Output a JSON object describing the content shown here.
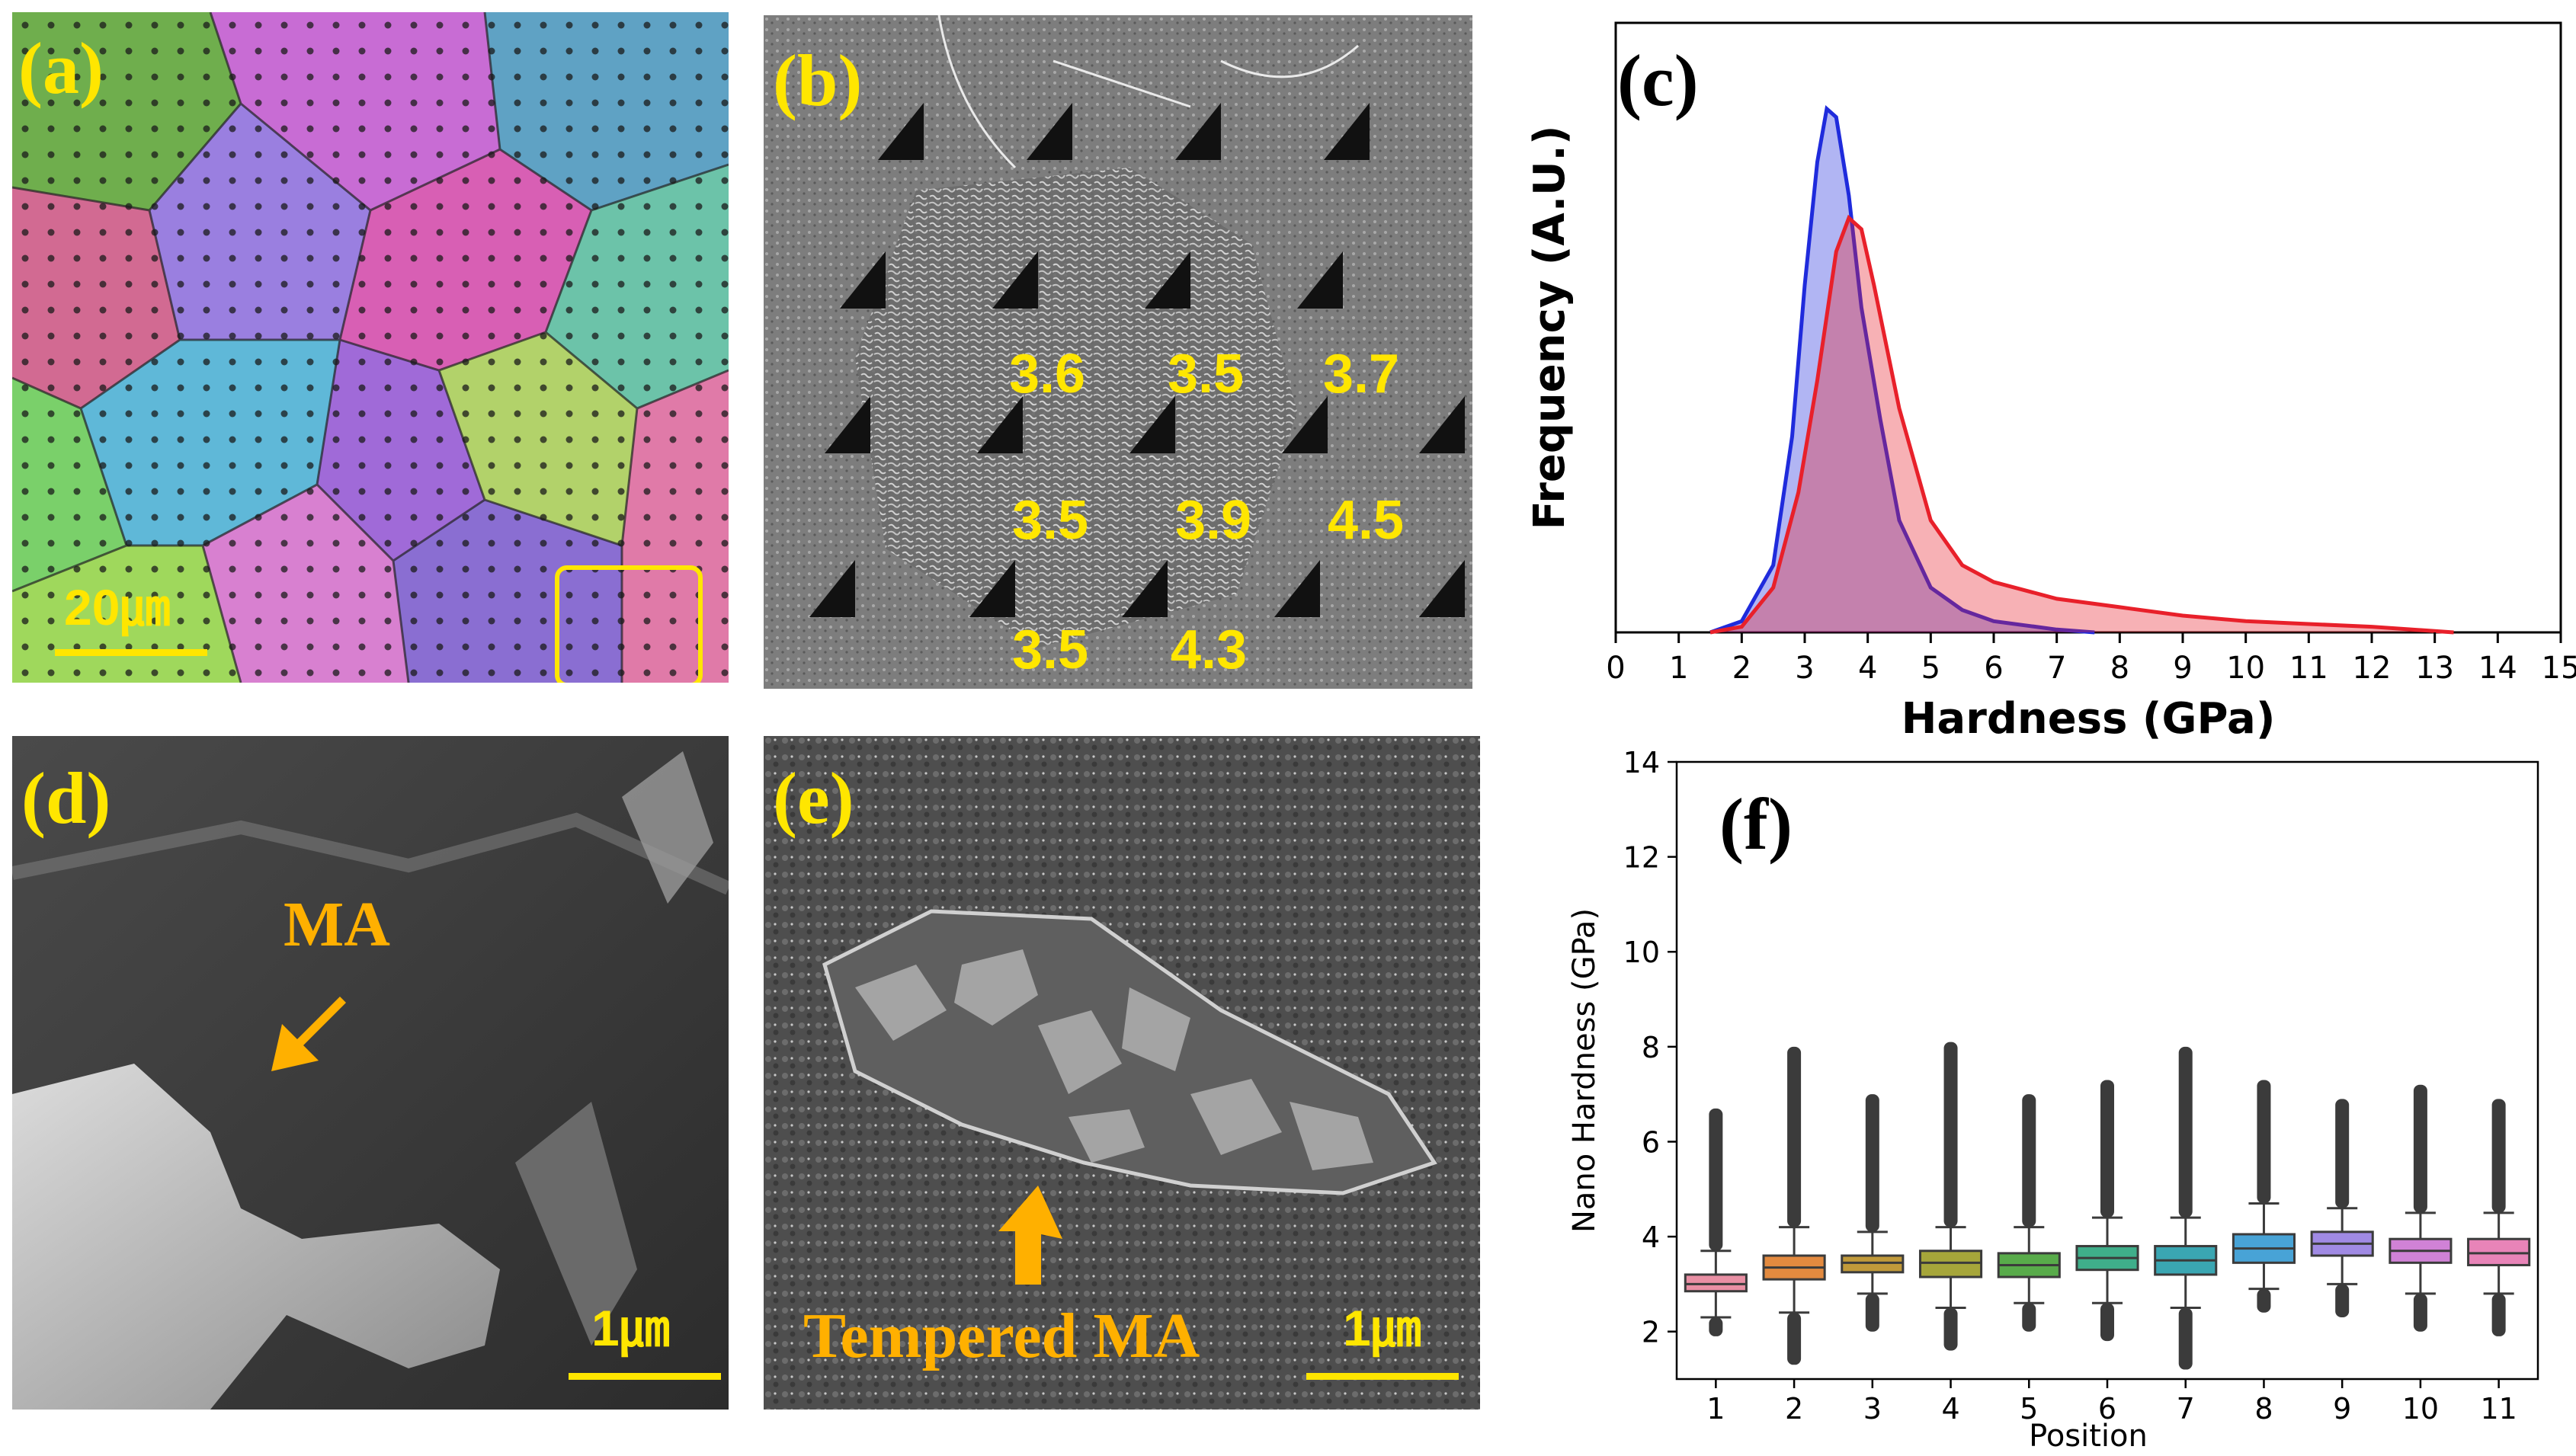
{
  "panel_a": {
    "label": "(a)",
    "scale_bar": "20㎛"
  },
  "panel_b": {
    "label": "(b)",
    "hardness_values": [
      "3.6",
      "3.5",
      "3.7",
      "3.5",
      "3.9",
      "4.5",
      "3.5",
      "4.3"
    ]
  },
  "panel_c": {
    "label": "(c)"
  },
  "panel_d": {
    "label": "(d)",
    "annotation": "MA",
    "scale_bar": "1㎛"
  },
  "panel_e": {
    "label": "(e)",
    "annotation": "Tempered MA",
    "scale_bar": "1㎛"
  },
  "panel_f": {
    "label": "(f)"
  },
  "colors": {
    "label_yellow": "#ffe600",
    "arrow_orange": "#ffb000",
    "blue_curve": "#1f2bdc",
    "red_curve": "#e8202a"
  },
  "chart_data": [
    {
      "type": "area",
      "xlabel": "Hardness (GPa)",
      "ylabel": "Frequency (A.U.)",
      "xlim": [
        0,
        15
      ],
      "xticks": [
        "0",
        "1",
        "2",
        "3",
        "4",
        "5",
        "6",
        "7",
        "8",
        "9",
        "10",
        "11",
        "12",
        "13",
        "14",
        "15"
      ],
      "series": [
        {
          "color": "#1f2bdc",
          "x": [
            1.5,
            2.0,
            2.5,
            2.8,
            3.0,
            3.2,
            3.35,
            3.5,
            3.7,
            3.9,
            4.2,
            4.5,
            5.0,
            5.5,
            6.0,
            7.0,
            7.6
          ],
          "values": [
            0.0,
            0.02,
            0.12,
            0.35,
            0.62,
            0.84,
            0.935,
            0.92,
            0.78,
            0.58,
            0.38,
            0.2,
            0.08,
            0.04,
            0.02,
            0.005,
            0.0
          ]
        },
        {
          "color": "#e8202a",
          "x": [
            1.5,
            2.0,
            2.5,
            2.9,
            3.2,
            3.5,
            3.7,
            3.9,
            4.1,
            4.5,
            5.0,
            5.5,
            6.0,
            7.0,
            8.0,
            9.0,
            10.0,
            11.0,
            12.0,
            13.3
          ],
          "values": [
            0.0,
            0.01,
            0.08,
            0.25,
            0.45,
            0.68,
            0.74,
            0.72,
            0.62,
            0.4,
            0.2,
            0.12,
            0.09,
            0.06,
            0.045,
            0.03,
            0.02,
            0.015,
            0.01,
            0.0
          ]
        }
      ]
    },
    {
      "type": "box",
      "xlabel": "Position",
      "ylabel": "Nano Hardness (GPa)",
      "ylim": [
        1,
        14
      ],
      "yticks": [
        "2",
        "4",
        "6",
        "8",
        "10",
        "12",
        "14"
      ],
      "categories": [
        "1",
        "2",
        "3",
        "4",
        "5",
        "6",
        "7",
        "8",
        "9",
        "10",
        "11"
      ],
      "box_colors": [
        "#e98fa4",
        "#e38a3f",
        "#c19a3a",
        "#a6a63a",
        "#58ab4a",
        "#3fae8a",
        "#3aa6b2",
        "#48a3d6",
        "#a08ae4",
        "#d082d6",
        "#e884b8"
      ],
      "boxes": [
        {
          "q1": 2.85,
          "median": 3.0,
          "q3": 3.2,
          "whisker_low": 2.3,
          "whisker_high": 3.7,
          "flier_low": 1.9,
          "flier_high": 6.7
        },
        {
          "q1": 3.1,
          "median": 3.35,
          "q3": 3.6,
          "whisker_low": 2.4,
          "whisker_high": 4.2,
          "flier_low": 1.3,
          "flier_high": 8.0
        },
        {
          "q1": 3.25,
          "median": 3.45,
          "q3": 3.6,
          "whisker_low": 2.8,
          "whisker_high": 4.1,
          "flier_low": 2.0,
          "flier_high": 7.0
        },
        {
          "q1": 3.15,
          "median": 3.45,
          "q3": 3.7,
          "whisker_low": 2.5,
          "whisker_high": 4.2,
          "flier_low": 1.6,
          "flier_high": 8.1
        },
        {
          "q1": 3.15,
          "median": 3.4,
          "q3": 3.65,
          "whisker_low": 2.6,
          "whisker_high": 4.2,
          "flier_low": 2.0,
          "flier_high": 7.0
        },
        {
          "q1": 3.3,
          "median": 3.55,
          "q3": 3.8,
          "whisker_low": 2.6,
          "whisker_high": 4.4,
          "flier_low": 1.8,
          "flier_high": 7.3
        },
        {
          "q1": 3.2,
          "median": 3.5,
          "q3": 3.8,
          "whisker_low": 2.5,
          "whisker_high": 4.4,
          "flier_low": 1.2,
          "flier_high": 8.0
        },
        {
          "q1": 3.45,
          "median": 3.75,
          "q3": 4.05,
          "whisker_low": 2.9,
          "whisker_high": 4.7,
          "flier_low": 2.4,
          "flier_high": 7.3
        },
        {
          "q1": 3.6,
          "median": 3.85,
          "q3": 4.1,
          "whisker_low": 3.0,
          "whisker_high": 4.6,
          "flier_low": 2.3,
          "flier_high": 6.9
        },
        {
          "q1": 3.45,
          "median": 3.7,
          "q3": 3.95,
          "whisker_low": 2.8,
          "whisker_high": 4.5,
          "flier_low": 2.0,
          "flier_high": 7.2
        },
        {
          "q1": 3.4,
          "median": 3.65,
          "q3": 3.95,
          "whisker_low": 2.8,
          "whisker_high": 4.5,
          "flier_low": 1.9,
          "flier_high": 6.9
        }
      ]
    }
  ]
}
